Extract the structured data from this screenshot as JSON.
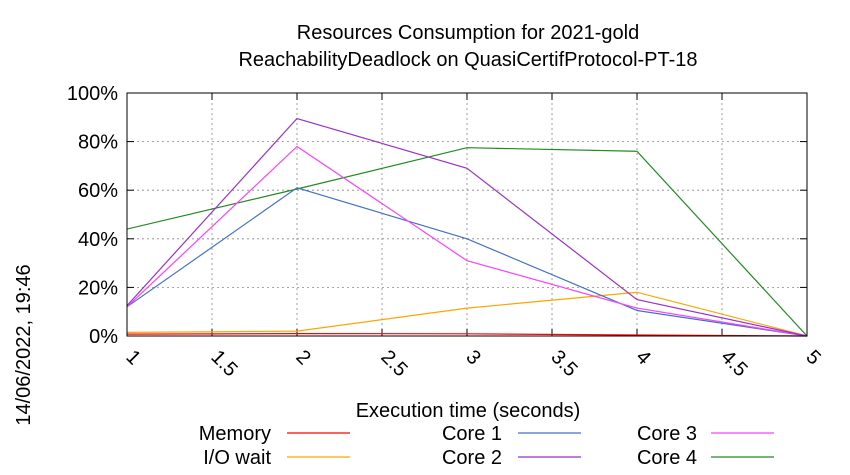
{
  "chart_data": {
    "type": "line",
    "title": "Resources Consumption for 2021-gold",
    "subtitle": "ReachabilityDeadlock on QuasiCertifProtocol-PT-18",
    "xlabel": "Execution time (seconds)",
    "ylabel": "",
    "xlim": [
      1,
      5
    ],
    "ylim": [
      0,
      100
    ],
    "x_ticks": [
      "1",
      "1.5",
      "2",
      "2.5",
      "3",
      "3.5",
      "4",
      "4.5",
      "5"
    ],
    "y_ticks": [
      "0%",
      "20%",
      "40%",
      "60%",
      "80%",
      "100%"
    ],
    "grid": true,
    "legend_position": "bottom",
    "timestamp": "14/06/2022, 19:46",
    "series": [
      {
        "name": "Memory",
        "color": "#ff0000",
        "x": [
          1,
          2,
          3,
          4,
          5
        ],
        "y": [
          0.8,
          1.0,
          0.9,
          0.4,
          0
        ]
      },
      {
        "name": "I/O wait",
        "color": "#ffa500",
        "x": [
          1,
          2,
          3,
          4,
          5
        ],
        "y": [
          1.5,
          2.0,
          11.5,
          18.0,
          0
        ]
      },
      {
        "name": "Core 1",
        "color": "#4472c4",
        "x": [
          1,
          2,
          3,
          4,
          5
        ],
        "y": [
          12.0,
          61.0,
          40.0,
          10.5,
          0
        ]
      },
      {
        "name": "Core 2",
        "color": "#9932cc",
        "x": [
          1,
          2,
          3,
          4,
          5
        ],
        "y": [
          12.5,
          89.5,
          69.0,
          15.0,
          0
        ]
      },
      {
        "name": "Core 3",
        "color": "#ff40ff",
        "x": [
          1,
          2,
          3,
          4,
          5
        ],
        "y": [
          12.0,
          78.0,
          31.0,
          11.5,
          0
        ]
      },
      {
        "name": "Core 4",
        "color": "#228b22",
        "x": [
          1,
          2,
          3,
          4,
          5
        ],
        "y": [
          44.0,
          60.5,
          77.5,
          76.0,
          0
        ]
      }
    ]
  }
}
